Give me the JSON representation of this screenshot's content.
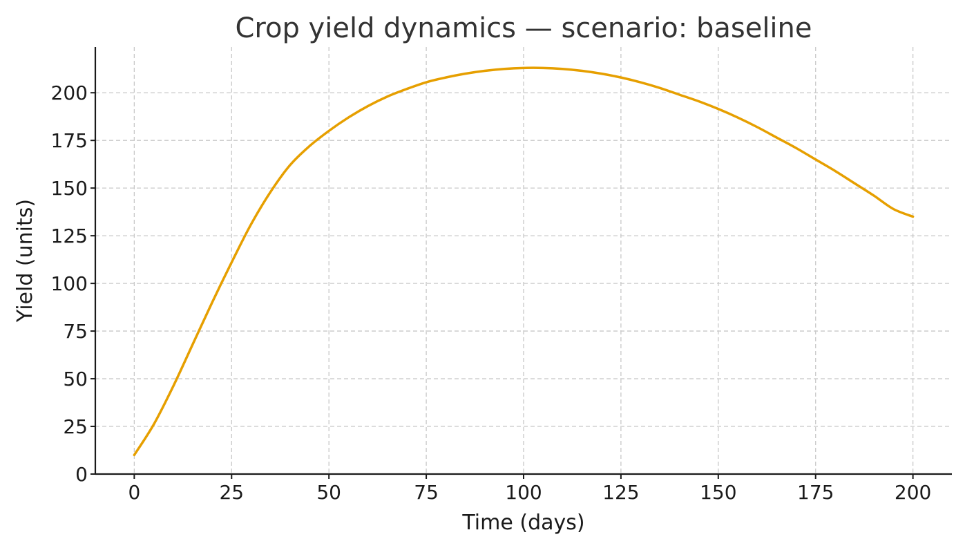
{
  "chart_data": {
    "type": "line",
    "title": "Crop yield dynamics — scenario: baseline",
    "xlabel": "Time (days)",
    "ylabel": "Yield (units)",
    "xlim": [
      -10,
      210
    ],
    "ylim": [
      0,
      224
    ],
    "x_ticks": [
      0,
      25,
      50,
      75,
      100,
      125,
      150,
      175,
      200
    ],
    "y_ticks": [
      0,
      25,
      50,
      75,
      100,
      125,
      150,
      175,
      200
    ],
    "grid": true,
    "legend": "none",
    "series": [
      {
        "color": "#E69F00",
        "x": [
          0,
          5,
          10,
          15,
          20,
          25,
          30,
          35,
          40,
          45,
          50,
          55,
          60,
          65,
          70,
          75,
          80,
          85,
          90,
          95,
          100,
          105,
          110,
          115,
          120,
          125,
          130,
          135,
          140,
          145,
          150,
          155,
          160,
          165,
          170,
          175,
          180,
          185,
          190,
          195,
          200
        ],
        "y": [
          10,
          26,
          46,
          68,
          90,
          111,
          131,
          148,
          162,
          172,
          180,
          187,
          193,
          198,
          202,
          205.5,
          208,
          210,
          211.5,
          212.5,
          213,
          213,
          212.5,
          211.5,
          210,
          208,
          205.5,
          202.5,
          199,
          195.5,
          191.5,
          187,
          182,
          176.5,
          171,
          165,
          159,
          152.5,
          146,
          139,
          135
        ]
      }
    ]
  }
}
